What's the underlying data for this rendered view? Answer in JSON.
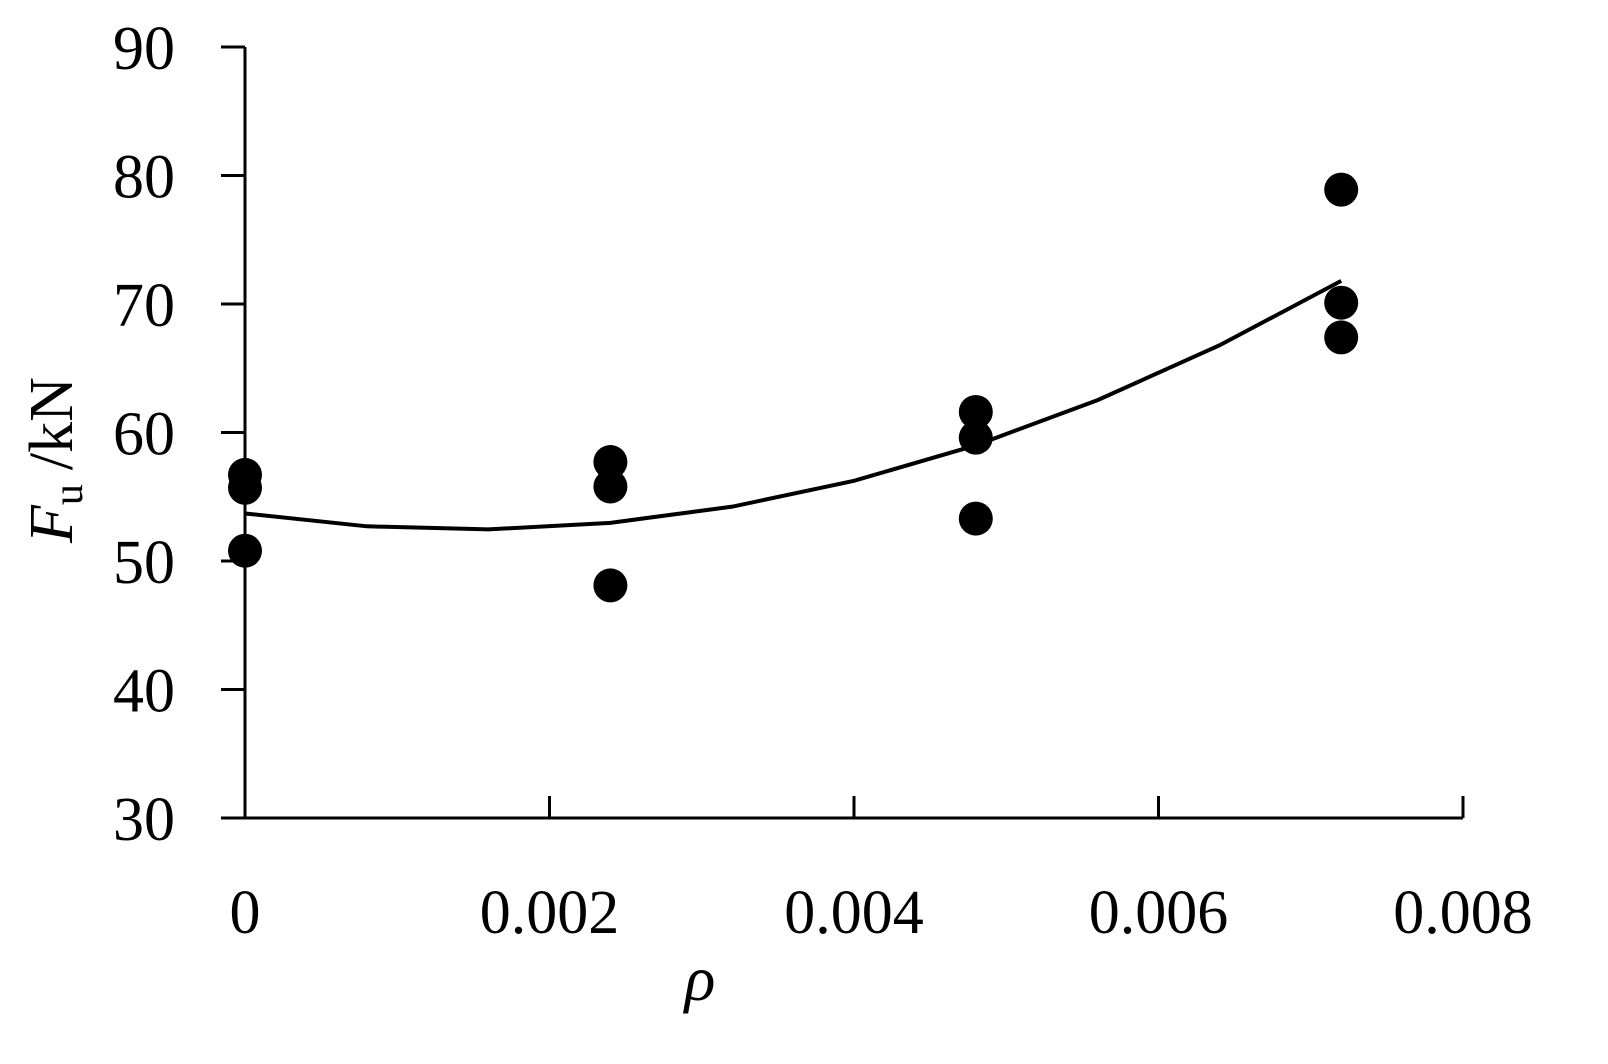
{
  "chart_data": {
    "type": "scatter",
    "x_label": "ρ",
    "y_label": {
      "symbol": "F",
      "subscript": "u",
      "unit": "/kN"
    },
    "xlim": [
      0,
      0.008
    ],
    "ylim": [
      30,
      90
    ],
    "xticks": [
      0,
      0.002,
      0.004,
      0.006,
      0.008
    ],
    "yticks": [
      30,
      40,
      50,
      60,
      70,
      80,
      90
    ],
    "series": [
      {
        "color": "#000000",
        "mark": "point",
        "x": [
          0,
          0,
          0,
          0.0024,
          0.0024,
          0.0024,
          0.0048,
          0.0048,
          0.0048,
          0.0072,
          0.0072,
          0.0072
        ],
        "values": [
          56.7,
          55.7,
          50.8,
          57.7,
          55.8,
          48.1,
          61.6,
          59.6,
          53.3,
          78.9,
          70.1,
          67.4
        ]
      },
      {
        "color": "#000000",
        "mark": "line",
        "x": [
          0,
          0.0008,
          0.0016,
          0.0024,
          0.0032,
          0.004,
          0.0048,
          0.0056,
          0.0064,
          0.0072
        ],
        "values": [
          53.7,
          52.7,
          52.46,
          52.97,
          54.23,
          56.24,
          59.0,
          62.52,
          66.78,
          71.8
        ]
      }
    ]
  }
}
